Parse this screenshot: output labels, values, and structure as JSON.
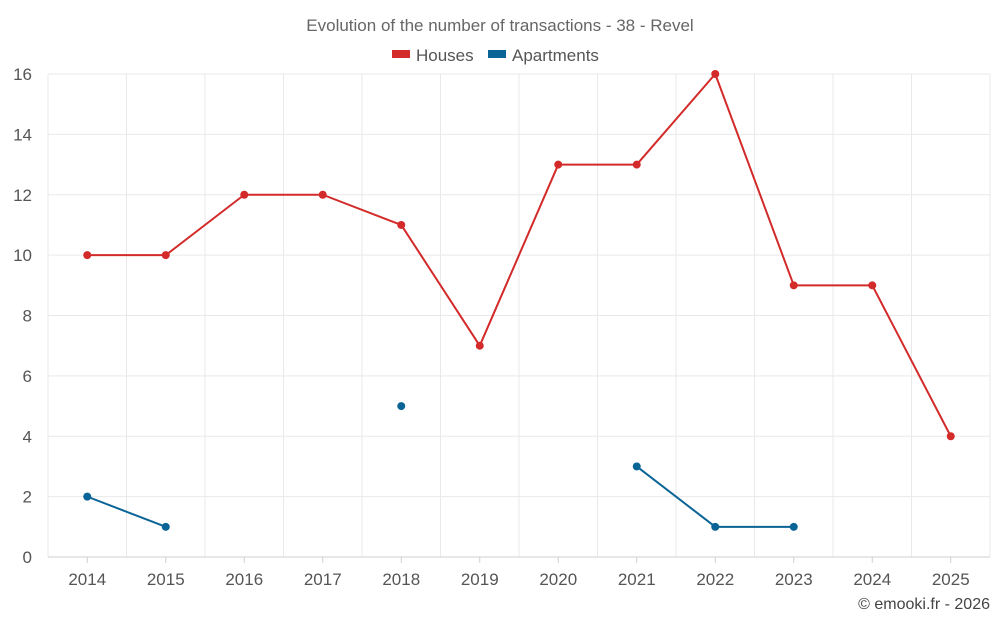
{
  "chart_data": {
    "type": "line",
    "title": "Evolution of the number of transactions - 38 - Revel",
    "categories": [
      "2014",
      "2015",
      "2016",
      "2017",
      "2018",
      "2019",
      "2020",
      "2021",
      "2022",
      "2023",
      "2024",
      "2025"
    ],
    "series": [
      {
        "name": "Houses",
        "color": "#d32a2a",
        "values": [
          10,
          10,
          12,
          12,
          11,
          7,
          13,
          13,
          16,
          9,
          9,
          4
        ]
      },
      {
        "name": "Apartments",
        "color": "#0a6496",
        "values": [
          2,
          1,
          null,
          null,
          5,
          null,
          null,
          3,
          1,
          1,
          null,
          null
        ]
      }
    ],
    "ylim": [
      0,
      16
    ],
    "yticks": [
      0,
      2,
      4,
      6,
      8,
      10,
      12,
      14,
      16
    ],
    "xlabel": "",
    "ylabel": "",
    "grid": true,
    "legend_position": "top-center"
  },
  "credit": "© emooki.fr - 2026"
}
